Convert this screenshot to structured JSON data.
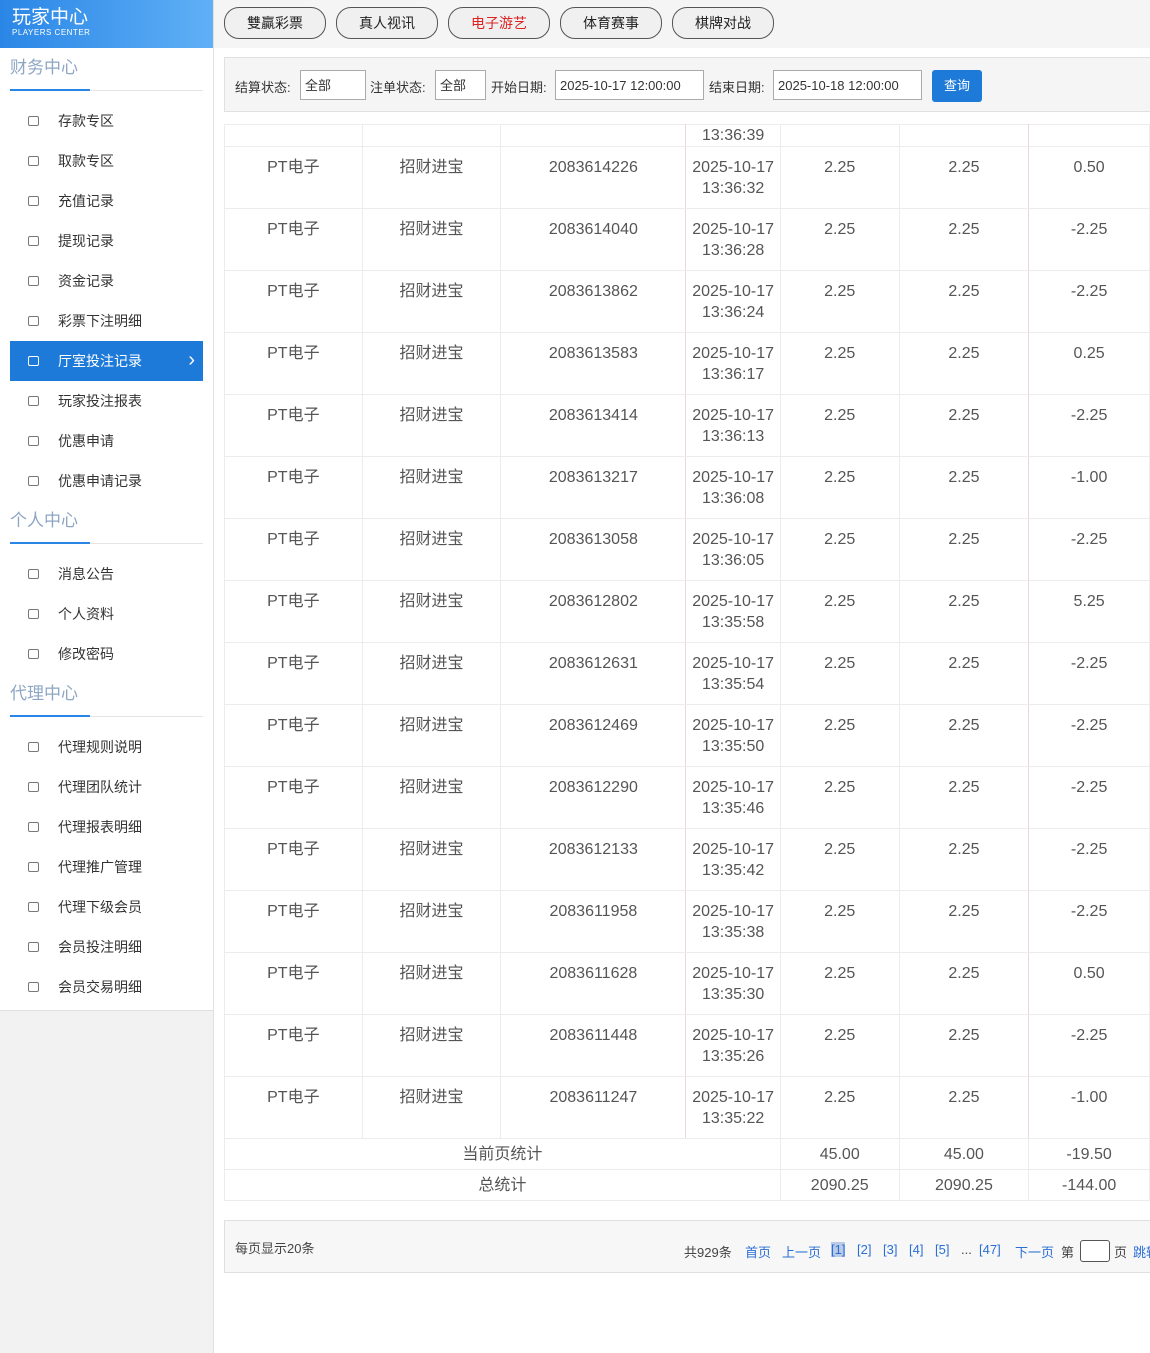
{
  "header": {
    "title": "玩家中心",
    "subtitle": "PLAYERS CENTER"
  },
  "tabs": [
    "雙贏彩票",
    "真人视讯",
    "电子游艺",
    "体育赛事",
    "棋牌对战"
  ],
  "sidebar": [
    {
      "title": "财务中心",
      "items": [
        "存款专区",
        "取款专区",
        "充值记录",
        "提现记录",
        "资金记录",
        "彩票下注明细",
        "厅室投注记录",
        "玩家投注报表",
        "优惠申请",
        "优惠申请记录"
      ]
    },
    {
      "title": "个人中心",
      "items": [
        "消息公告",
        "个人资料",
        "修改密码"
      ]
    },
    {
      "title": "代理中心",
      "items": [
        "代理规则说明",
        "代理团队统计",
        "代理报表明细",
        "代理推广管理",
        "代理下级会员",
        "会员投注明细",
        "会员交易明细"
      ]
    }
  ],
  "filters": {
    "settle_label": "结算状态:",
    "settle_value": "全部",
    "order_label": "注单状态:",
    "order_value": "全部",
    "start_label": "开始日期:",
    "start_value": "2025-10-17 12:00:00",
    "end_label": "结束日期:",
    "end_value": "2025-10-18 12:00:00",
    "button": "查询"
  },
  "table": {
    "partial_row_time": "13:36:39",
    "rows": [
      [
        "PT电子",
        "招财进宝",
        "2083614226",
        "2025-10-17 13:36:32",
        "2.25",
        "2.25",
        "0.50"
      ],
      [
        "PT电子",
        "招财进宝",
        "2083614040",
        "2025-10-17 13:36:28",
        "2.25",
        "2.25",
        "-2.25"
      ],
      [
        "PT电子",
        "招财进宝",
        "2083613862",
        "2025-10-17 13:36:24",
        "2.25",
        "2.25",
        "-2.25"
      ],
      [
        "PT电子",
        "招财进宝",
        "2083613583",
        "2025-10-17 13:36:17",
        "2.25",
        "2.25",
        "0.25"
      ],
      [
        "PT电子",
        "招财进宝",
        "2083613414",
        "2025-10-17 13:36:13",
        "2.25",
        "2.25",
        "-2.25"
      ],
      [
        "PT电子",
        "招财进宝",
        "2083613217",
        "2025-10-17 13:36:08",
        "2.25",
        "2.25",
        "-1.00"
      ],
      [
        "PT电子",
        "招财进宝",
        "2083613058",
        "2025-10-17 13:36:05",
        "2.25",
        "2.25",
        "-2.25"
      ],
      [
        "PT电子",
        "招财进宝",
        "2083612802",
        "2025-10-17 13:35:58",
        "2.25",
        "2.25",
        "5.25"
      ],
      [
        "PT电子",
        "招财进宝",
        "2083612631",
        "2025-10-17 13:35:54",
        "2.25",
        "2.25",
        "-2.25"
      ],
      [
        "PT电子",
        "招财进宝",
        "2083612469",
        "2025-10-17 13:35:50",
        "2.25",
        "2.25",
        "-2.25"
      ],
      [
        "PT电子",
        "招财进宝",
        "2083612290",
        "2025-10-17 13:35:46",
        "2.25",
        "2.25",
        "-2.25"
      ],
      [
        "PT电子",
        "招财进宝",
        "2083612133",
        "2025-10-17 13:35:42",
        "2.25",
        "2.25",
        "-2.25"
      ],
      [
        "PT电子",
        "招财进宝",
        "2083611958",
        "2025-10-17 13:35:38",
        "2.25",
        "2.25",
        "-2.25"
      ],
      [
        "PT电子",
        "招财进宝",
        "2083611628",
        "2025-10-17 13:35:30",
        "2.25",
        "2.25",
        "0.50"
      ],
      [
        "PT电子",
        "招财进宝",
        "2083611448",
        "2025-10-17 13:35:26",
        "2.25",
        "2.25",
        "-2.25"
      ],
      [
        "PT电子",
        "招财进宝",
        "2083611247",
        "2025-10-17 13:35:22",
        "2.25",
        "2.25",
        "-1.00"
      ]
    ],
    "summary": [
      {
        "label": "当前页统计",
        "values": [
          "45.00",
          "45.00",
          "-19.50"
        ]
      },
      {
        "label": "总统计",
        "values": [
          "2090.25",
          "2090.25",
          "-144.00"
        ]
      }
    ]
  },
  "pagination": {
    "page_size": "每页显示20条",
    "total": "共929条",
    "links": [
      "首页",
      "上一页",
      "[1]",
      "[2]",
      "[3]",
      "[4]",
      "[5]",
      "...",
      "[47]",
      "下一页"
    ],
    "goto_prefix": "第",
    "goto_suffix": "页",
    "jump": "跳转"
  }
}
